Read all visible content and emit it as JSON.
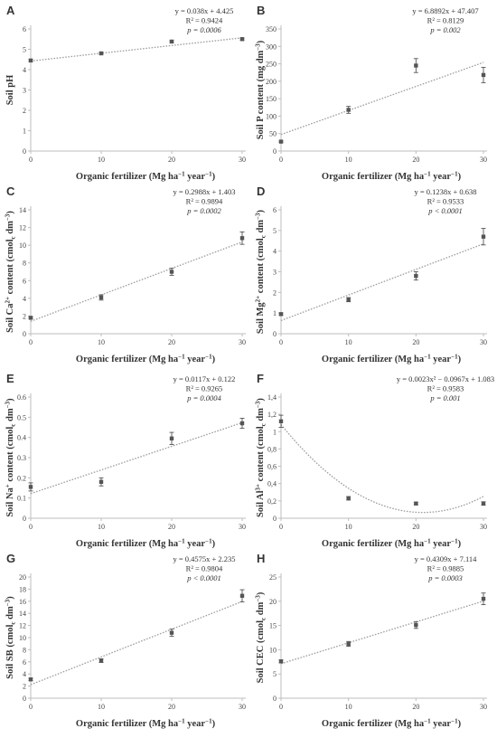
{
  "chart_data": [
    {
      "type": "scatter",
      "panel": "A",
      "xlabel": "Organic fertilizer (Mg ha⁻¹ year⁻¹)",
      "ylabel": "Soil pH",
      "xlim": [
        0,
        30
      ],
      "ylim": [
        0,
        6
      ],
      "xticks": [
        0,
        10,
        20,
        30
      ],
      "yticks": [
        0,
        1,
        2,
        3,
        4,
        5,
        6
      ],
      "x": [
        0,
        10,
        20,
        30
      ],
      "values": [
        4.45,
        4.8,
        5.38,
        5.5
      ],
      "errors": [
        0.05,
        0.05,
        0.05,
        0.05
      ],
      "fit": {
        "kind": "linear",
        "coef": [
          0.038,
          4.425
        ]
      },
      "equation_lines": [
        "y = 0.038x + 4.425",
        "R² = 0.9424",
        "p = 0.0006"
      ]
    },
    {
      "type": "scatter",
      "panel": "B",
      "xlabel": "Organic fertilizer (Mg ha⁻¹ year⁻¹)",
      "ylabel": "Soil P content (mg dm⁻³)",
      "xlim": [
        0,
        30
      ],
      "ylim": [
        0,
        350
      ],
      "xticks": [
        0,
        10,
        20,
        30
      ],
      "yticks": [
        0,
        50,
        100,
        150,
        200,
        250,
        300,
        350
      ],
      "x": [
        0,
        10,
        20,
        30
      ],
      "values": [
        27,
        118,
        245,
        218
      ],
      "errors": [
        2,
        10,
        20,
        22
      ],
      "fit": {
        "kind": "linear",
        "coef": [
          6.8892,
          47.407
        ]
      },
      "equation_lines": [
        "y = 6.8892x + 47.407",
        "R² = 0.8129",
        "p = 0.002"
      ]
    },
    {
      "type": "scatter",
      "panel": "C",
      "xlabel": "Organic fertilizer (Mg ha⁻¹ year⁻¹)",
      "ylabel": "Soil Ca²⁺ content (cmolc dm⁻³)",
      "xlim": [
        0,
        30
      ],
      "ylim": [
        0,
        14
      ],
      "xticks": [
        0,
        10,
        20,
        30
      ],
      "yticks": [
        0,
        2,
        4,
        6,
        8,
        10,
        12,
        14
      ],
      "x": [
        0,
        10,
        20,
        30
      ],
      "values": [
        1.8,
        4.1,
        7.0,
        10.8
      ],
      "errors": [
        0.1,
        0.3,
        0.4,
        0.7
      ],
      "fit": {
        "kind": "linear",
        "coef": [
          0.2988,
          1.403
        ]
      },
      "equation_lines": [
        "y = 0.2988x + 1.403",
        "R² = 0.9894",
        "p = 0.0002"
      ]
    },
    {
      "type": "scatter",
      "panel": "D",
      "xlabel": "Organic fertilizer (Mg ha⁻¹ year⁻¹)",
      "ylabel": "Soil Mg²⁺ content (cmolc dm⁻³)",
      "xlim": [
        0,
        30
      ],
      "ylim": [
        0,
        6
      ],
      "xticks": [
        0,
        10,
        20,
        30
      ],
      "yticks": [
        0,
        1,
        2,
        3,
        4,
        5,
        6
      ],
      "x": [
        0,
        10,
        20,
        30
      ],
      "values": [
        0.95,
        1.65,
        2.8,
        4.7
      ],
      "errors": [
        0.05,
        0.1,
        0.2,
        0.4
      ],
      "fit": {
        "kind": "linear",
        "coef": [
          0.1238,
          0.638
        ]
      },
      "equation_lines": [
        "y = 0.1238x + 0.638",
        "R² = 0.9533",
        "p < 0.0001"
      ]
    },
    {
      "type": "scatter",
      "panel": "E",
      "xlabel": "Organic fertilizer (Mg ha⁻¹ year⁻¹)",
      "ylabel": "Soil Na⁺ content (cmolc dm⁻³)",
      "xlim": [
        0,
        30
      ],
      "ylim": [
        0,
        0.6
      ],
      "xticks": [
        0,
        10,
        20,
        30
      ],
      "yticks": [
        0,
        0.1,
        0.2,
        0.3,
        0.4,
        0.5,
        0.6
      ],
      "x": [
        0,
        10,
        20,
        30
      ],
      "values": [
        0.155,
        0.18,
        0.395,
        0.47
      ],
      "errors": [
        0.02,
        0.02,
        0.03,
        0.025
      ],
      "fit": {
        "kind": "linear",
        "coef": [
          0.0117,
          0.122
        ]
      },
      "equation_lines": [
        "y = 0.0117x + 0.122",
        "R² = 0.9265",
        "p = 0.0004"
      ]
    },
    {
      "type": "scatter",
      "panel": "F",
      "xlabel": "Organic fertilizer (Mg ha⁻¹ year⁻¹)",
      "ylabel": "Soil Al³⁺ content (cmolc dm⁻³)",
      "xlim": [
        0,
        30
      ],
      "ylim": [
        0,
        1.4
      ],
      "xticks": [
        0,
        10,
        20,
        30
      ],
      "yticks": [
        0,
        0.2,
        0.4,
        0.6,
        0.8,
        1,
        1.2,
        1.4
      ],
      "ytick_labels": [
        "0",
        "0,2",
        "0,4",
        "0,6",
        "0,8",
        "1",
        "1,2",
        "1,4"
      ],
      "x": [
        0,
        10,
        20,
        30
      ],
      "values": [
        1.12,
        0.23,
        0.17,
        0.17
      ],
      "errors": [
        0.07,
        0.02,
        0.015,
        0.02
      ],
      "fit": {
        "kind": "quadratic",
        "coef": [
          0.0023,
          -0.0967,
          1.083
        ]
      },
      "equation_lines": [
        "y = 0.0023x² − 0.0967x + 1.083",
        "R² = 0.9583",
        "p = 0.001"
      ]
    },
    {
      "type": "scatter",
      "panel": "G",
      "xlabel": "Organic fertilizer (Mg ha⁻¹ year⁻¹)",
      "ylabel": "Soil SB (cmolc dm⁻³)",
      "xlim": [
        0,
        30
      ],
      "ylim": [
        0,
        20
      ],
      "xticks": [
        0,
        10,
        20,
        30
      ],
      "yticks": [
        0,
        2,
        4,
        6,
        8,
        10,
        12,
        14,
        16,
        18,
        20
      ],
      "x": [
        0,
        10,
        20,
        30
      ],
      "values": [
        3.1,
        6.2,
        10.8,
        16.9
      ],
      "errors": [
        0.2,
        0.3,
        0.6,
        1.0
      ],
      "fit": {
        "kind": "linear",
        "coef": [
          0.4575,
          2.235
        ]
      },
      "equation_lines": [
        "y = 0.4575x + 2.235",
        "R² = 0.9804",
        "p < 0.0001"
      ]
    },
    {
      "type": "scatter",
      "panel": "H",
      "xlabel": "Organic fertilizer (Mg ha⁻¹ year⁻¹)",
      "ylabel": "Soil CEC (cmolc dm⁻³)",
      "xlim": [
        0,
        30
      ],
      "ylim": [
        0,
        25
      ],
      "xticks": [
        0,
        10,
        20,
        30
      ],
      "yticks": [
        0,
        5,
        10,
        15,
        20,
        25
      ],
      "x": [
        0,
        10,
        20,
        30
      ],
      "values": [
        7.6,
        11.2,
        15.1,
        20.5
      ],
      "errors": [
        0.3,
        0.5,
        0.7,
        1.2
      ],
      "fit": {
        "kind": "linear",
        "coef": [
          0.4309,
          7.114
        ]
      },
      "equation_lines": [
        "y = 0.4309x + 7.114",
        "R² = 0.9885",
        "p = 0.0003"
      ]
    }
  ]
}
